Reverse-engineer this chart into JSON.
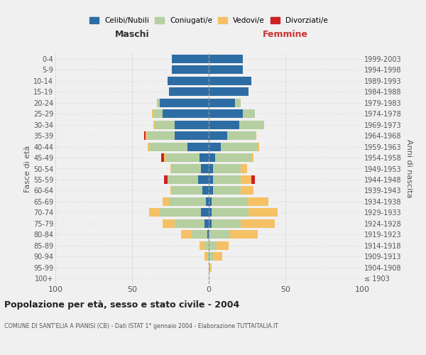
{
  "age_groups": [
    "100+",
    "95-99",
    "90-94",
    "85-89",
    "80-84",
    "75-79",
    "70-74",
    "65-69",
    "60-64",
    "55-59",
    "50-54",
    "45-49",
    "40-44",
    "35-39",
    "30-34",
    "25-29",
    "20-24",
    "15-19",
    "10-14",
    "5-9",
    "0-4"
  ],
  "birth_years": [
    "≤ 1903",
    "1904-1908",
    "1909-1913",
    "1914-1918",
    "1919-1923",
    "1924-1928",
    "1929-1933",
    "1934-1938",
    "1939-1943",
    "1944-1948",
    "1949-1953",
    "1954-1958",
    "1959-1963",
    "1964-1968",
    "1969-1973",
    "1974-1978",
    "1979-1983",
    "1984-1988",
    "1989-1993",
    "1994-1998",
    "1999-2003"
  ],
  "colors": {
    "celibi": "#2e6da4",
    "coniugati": "#b5cfa0",
    "vedovi": "#f5c164",
    "divorziati": "#cc2222"
  },
  "male": {
    "celibi": [
      0,
      0,
      0,
      0,
      1,
      3,
      5,
      2,
      4,
      7,
      5,
      6,
      14,
      22,
      22,
      30,
      32,
      26,
      27,
      24,
      24
    ],
    "coniugati": [
      0,
      0,
      1,
      3,
      10,
      19,
      27,
      24,
      20,
      20,
      19,
      22,
      25,
      18,
      13,
      6,
      2,
      0,
      0,
      0,
      0
    ],
    "vedovi": [
      0,
      0,
      2,
      3,
      7,
      8,
      7,
      4,
      1,
      0,
      1,
      1,
      1,
      1,
      1,
      1,
      0,
      0,
      0,
      0,
      0
    ],
    "divorziati": [
      0,
      0,
      0,
      0,
      0,
      0,
      0,
      0,
      0,
      2,
      0,
      2,
      0,
      1,
      0,
      0,
      0,
      0,
      0,
      0,
      0
    ]
  },
  "female": {
    "celibi": [
      0,
      0,
      0,
      0,
      0,
      2,
      2,
      2,
      3,
      3,
      3,
      4,
      8,
      12,
      20,
      22,
      17,
      26,
      28,
      22,
      22
    ],
    "coniugati": [
      0,
      1,
      3,
      5,
      14,
      19,
      24,
      23,
      18,
      18,
      18,
      24,
      24,
      18,
      16,
      8,
      4,
      0,
      0,
      0,
      0
    ],
    "vedovi": [
      0,
      1,
      6,
      8,
      18,
      22,
      19,
      14,
      8,
      7,
      4,
      1,
      1,
      1,
      0,
      0,
      0,
      0,
      0,
      0,
      0
    ],
    "divorziati": [
      0,
      0,
      0,
      0,
      0,
      0,
      0,
      0,
      0,
      2,
      0,
      0,
      0,
      0,
      0,
      0,
      0,
      0,
      0,
      0,
      0
    ]
  },
  "xlim": 100,
  "title": "Popolazione per età, sesso e stato civile - 2004",
  "subtitle": "COMUNE DI SANT'ELIA A PIANISI (CB) - Dati ISTAT 1° gennaio 2004 - Elaborazione TUTTAITALIA.IT",
  "ylabel_left": "Fasce di età",
  "ylabel_right": "Anni di nascita",
  "xlabel_left": "Maschi",
  "xlabel_right": "Femmine",
  "bg_color": "#f0f0f0",
  "grid_color": "#cccccc"
}
